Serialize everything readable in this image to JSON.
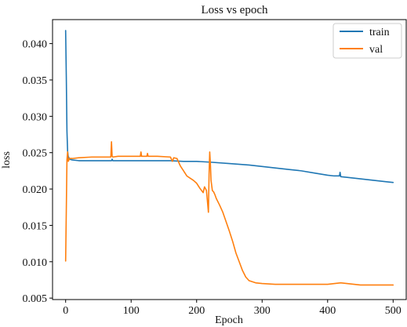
{
  "chart_data": {
    "type": "line",
    "title": "Loss vs epoch",
    "xlabel": "Epoch",
    "ylabel": "loss",
    "xlim": [
      -20,
      520
    ],
    "ylim": [
      0.0048,
      0.0433
    ],
    "xticks": [
      0,
      100,
      200,
      300,
      400,
      500
    ],
    "yticks": [
      0.005,
      0.01,
      0.015,
      0.02,
      0.025,
      0.03,
      0.035,
      0.04
    ],
    "ytick_labels": [
      "0.005",
      "0.010",
      "0.015",
      "0.020",
      "0.025",
      "0.030",
      "0.035",
      "0.040"
    ],
    "grid": false,
    "legend": "upper right",
    "series": [
      {
        "name": "train",
        "color": "#1f77b4",
        "x": [
          0,
          1,
          2,
          3,
          4,
          6,
          10,
          20,
          50,
          70,
          71,
          72,
          100,
          150,
          160,
          180,
          200,
          220,
          250,
          280,
          300,
          320,
          340,
          360,
          380,
          400,
          410,
          418,
          419,
          420,
          430,
          450,
          470,
          490,
          500
        ],
        "y": [
          0.0418,
          0.0355,
          0.028,
          0.0252,
          0.0245,
          0.0241,
          0.024,
          0.0239,
          0.0239,
          0.0239,
          0.0241,
          0.0239,
          0.0239,
          0.0239,
          0.0239,
          0.0238,
          0.0238,
          0.0237,
          0.0235,
          0.0233,
          0.0231,
          0.0229,
          0.0227,
          0.0225,
          0.0222,
          0.0219,
          0.0218,
          0.0218,
          0.0223,
          0.0217,
          0.0216,
          0.0214,
          0.0212,
          0.021,
          0.0209
        ]
      },
      {
        "name": "val",
        "color": "#ff7f0e",
        "x": [
          0,
          1,
          2,
          3,
          4,
          6,
          10,
          20,
          40,
          60,
          69,
          70,
          71,
          72,
          80,
          100,
          114,
          115,
          116,
          120,
          124,
          125,
          126,
          140,
          160,
          163,
          165,
          170,
          175,
          180,
          185,
          190,
          195,
          200,
          205,
          210,
          212,
          215,
          218,
          219,
          220,
          221,
          222,
          224,
          226,
          228,
          230,
          235,
          240,
          245,
          250,
          255,
          260,
          265,
          270,
          275,
          280,
          290,
          300,
          320,
          350,
          400,
          420,
          450,
          480,
          500
        ],
        "y": [
          0.0101,
          0.017,
          0.024,
          0.0251,
          0.0238,
          0.0242,
          0.0242,
          0.0243,
          0.0244,
          0.0244,
          0.0244,
          0.0265,
          0.0245,
          0.0244,
          0.0245,
          0.0245,
          0.0245,
          0.0251,
          0.0245,
          0.0245,
          0.0245,
          0.0249,
          0.0245,
          0.0245,
          0.0244,
          0.0238,
          0.0243,
          0.0242,
          0.0232,
          0.0225,
          0.0218,
          0.0215,
          0.0212,
          0.0208,
          0.0201,
          0.0195,
          0.0203,
          0.0198,
          0.0168,
          0.022,
          0.0251,
          0.0235,
          0.0212,
          0.0198,
          0.0196,
          0.0192,
          0.0187,
          0.0178,
          0.0168,
          0.0155,
          0.0142,
          0.0128,
          0.0112,
          0.01,
          0.0088,
          0.0079,
          0.0074,
          0.0071,
          0.007,
          0.0069,
          0.0069,
          0.0069,
          0.0071,
          0.0068,
          0.0068,
          0.0068
        ]
      }
    ]
  }
}
